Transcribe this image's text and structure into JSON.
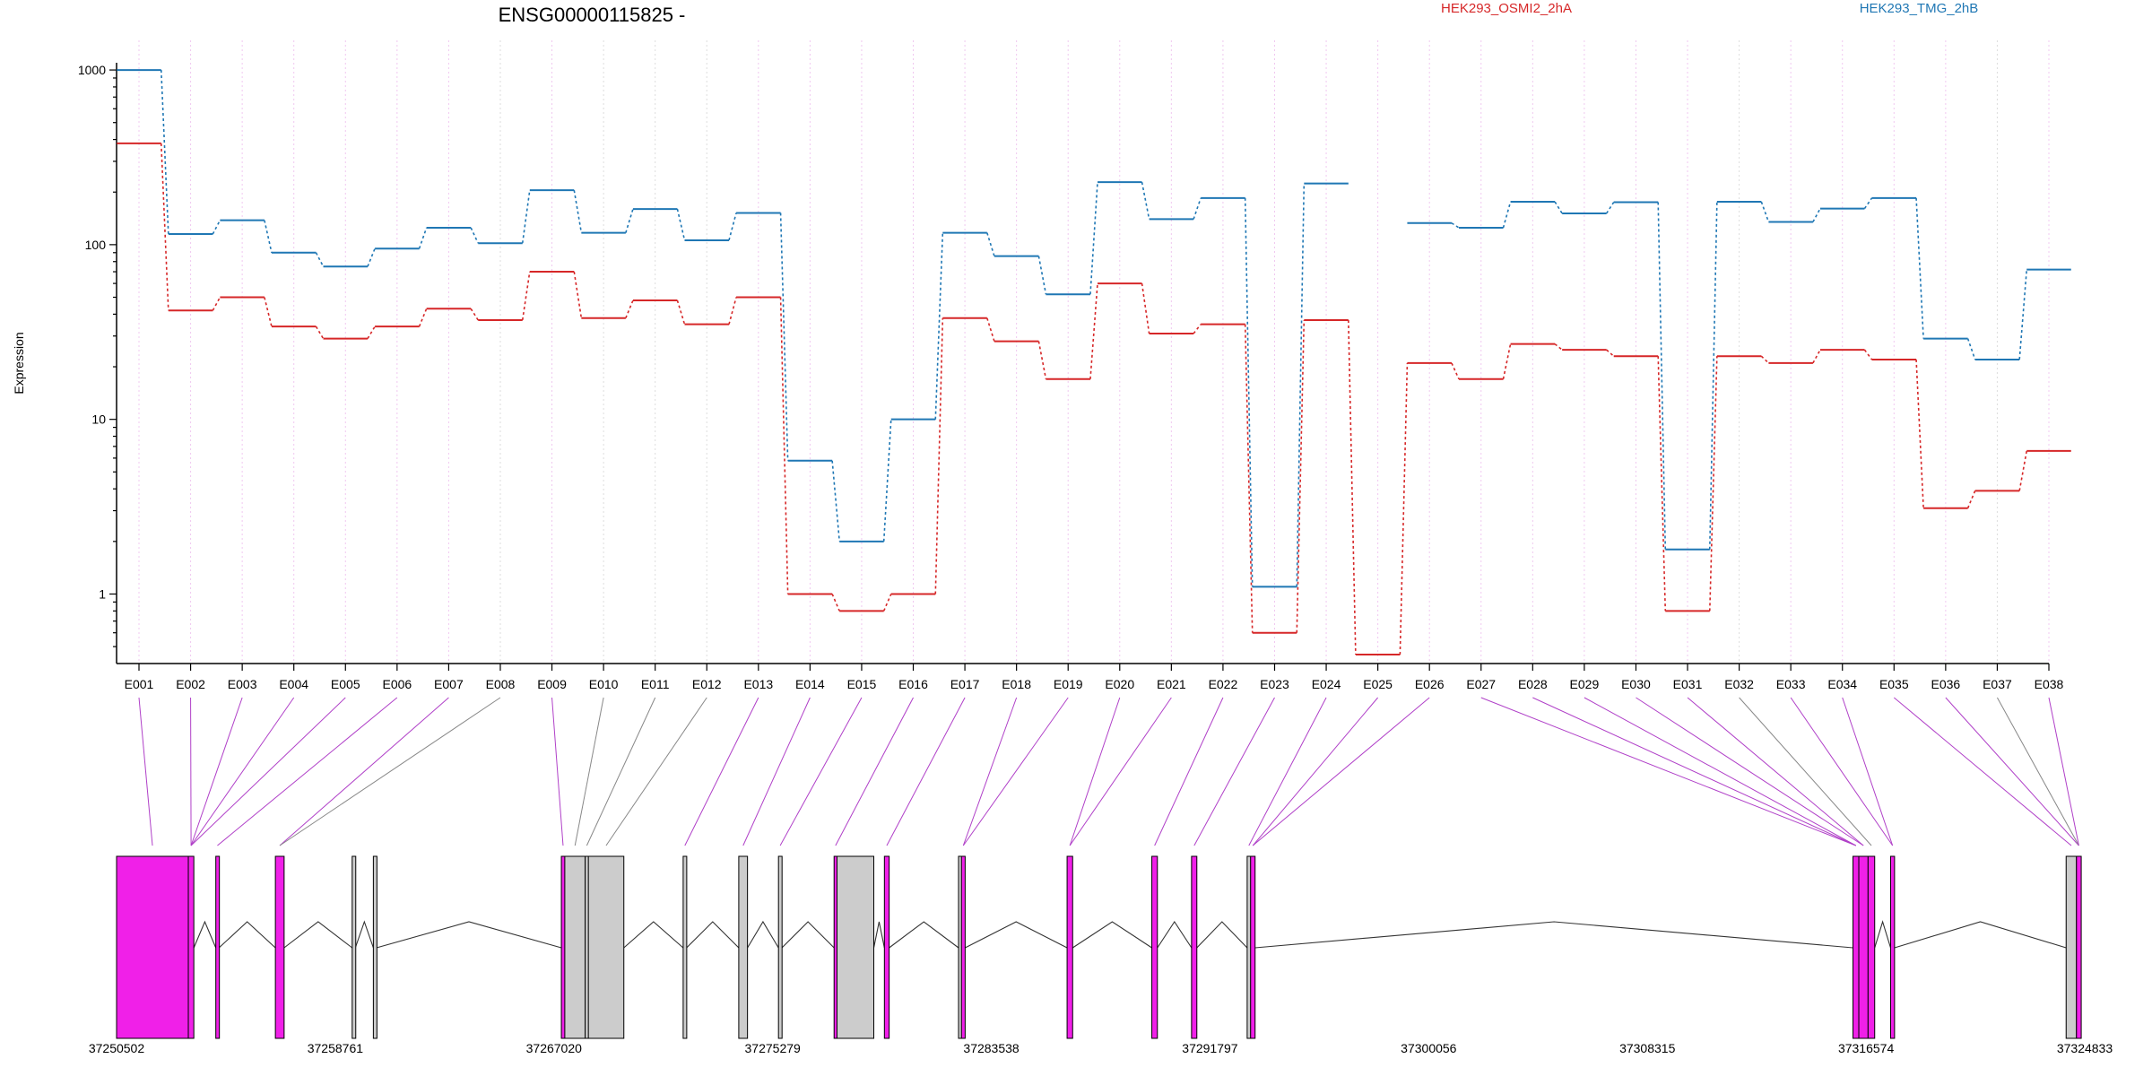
{
  "chart_data": {
    "type": "line",
    "title": "ENSG00000115825 -",
    "xlabel": "",
    "ylabel": "Expression",
    "y_scale": "log",
    "y_ticks": [
      "1",
      "10",
      "100",
      "1000"
    ],
    "y_tick_values": [
      1,
      10,
      100,
      1000
    ],
    "ylim": [
      0.4,
      1100
    ],
    "grid": true,
    "legend_position": "top-right",
    "categories": [
      "E001",
      "E002",
      "E003",
      "E004",
      "E005",
      "E006",
      "E007",
      "E008",
      "E009",
      "E010",
      "E011",
      "E012",
      "E013",
      "E014",
      "E015",
      "E016",
      "E017",
      "E018",
      "E019",
      "E020",
      "E021",
      "E022",
      "E023",
      "E024",
      "E025",
      "E026",
      "E027",
      "E028",
      "E029",
      "E030",
      "E031",
      "E032",
      "E033",
      "E034",
      "E035",
      "E036",
      "E037",
      "E038"
    ],
    "series": [
      {
        "name": "HEK293_OSMI2_2hA",
        "color": "#d62728",
        "values": [
          380,
          42,
          50,
          34,
          29,
          34,
          43,
          37,
          70,
          38,
          48,
          35,
          50,
          1.0,
          0.8,
          1.0,
          38,
          28,
          17,
          60,
          31,
          35,
          0.6,
          37,
          0.45,
          21,
          17,
          27,
          25,
          23,
          0.8,
          23,
          21,
          25,
          22,
          3.1,
          3.9,
          6.6
        ]
      },
      {
        "name": "HEK293_TMG_2hB",
        "color": "#1f77b4",
        "values": [
          1000,
          115,
          138,
          90,
          75,
          95,
          125,
          102,
          205,
          117,
          160,
          106,
          152,
          5.8,
          2.0,
          10,
          117,
          86,
          52,
          228,
          140,
          185,
          1.1,
          224,
          null,
          133,
          125,
          176,
          151,
          175,
          1.8,
          176,
          135,
          161,
          185,
          29,
          22,
          72
        ]
      }
    ],
    "exon_highlight": [
      true,
      true,
      true,
      true,
      true,
      true,
      true,
      false,
      true,
      false,
      false,
      false,
      true,
      true,
      true,
      true,
      true,
      true,
      true,
      true,
      true,
      true,
      true,
      true,
      true,
      true,
      true,
      true,
      true,
      true,
      true,
      false,
      true,
      true,
      true,
      true,
      false,
      true
    ],
    "genomic_axis": {
      "ticks": [
        "37250502",
        "37258761",
        "37267020",
        "37275279",
        "37283538",
        "37291797",
        "37300056",
        "37308315",
        "37316574",
        "37324833"
      ],
      "start": 37250502,
      "end": 37324833
    },
    "gene_model_exons": [
      {
        "start": 37250502,
        "end": 37253212,
        "highlight": true
      },
      {
        "start": 37253212,
        "end": 37253420,
        "highlight": true
      },
      {
        "start": 37254250,
        "end": 37254370,
        "highlight": true
      },
      {
        "start": 37256500,
        "end": 37256830,
        "highlight": true
      },
      {
        "start": 37259400,
        "end": 37259520,
        "highlight": false
      },
      {
        "start": 37260200,
        "end": 37260320,
        "highlight": false
      },
      {
        "start": 37267300,
        "end": 37267430,
        "highlight": true
      },
      {
        "start": 37267430,
        "end": 37268200,
        "highlight": false
      },
      {
        "start": 37268200,
        "end": 37268320,
        "highlight": false
      },
      {
        "start": 37268320,
        "end": 37269660,
        "highlight": false
      },
      {
        "start": 37271900,
        "end": 37272030,
        "highlight": false
      },
      {
        "start": 37274000,
        "end": 37274330,
        "highlight": false
      },
      {
        "start": 37275500,
        "end": 37275630,
        "highlight": false
      },
      {
        "start": 37277600,
        "end": 37277710,
        "highlight": true
      },
      {
        "start": 37277710,
        "end": 37279100,
        "highlight": false
      },
      {
        "start": 37279500,
        "end": 37279680,
        "highlight": true
      },
      {
        "start": 37282300,
        "end": 37282410,
        "highlight": false
      },
      {
        "start": 37282410,
        "end": 37282550,
        "highlight": true
      },
      {
        "start": 37286400,
        "end": 37286610,
        "highlight": true
      },
      {
        "start": 37289600,
        "end": 37289810,
        "highlight": true
      },
      {
        "start": 37291100,
        "end": 37291300,
        "highlight": true
      },
      {
        "start": 37293200,
        "end": 37293330,
        "highlight": false
      },
      {
        "start": 37293330,
        "end": 37293500,
        "highlight": true
      },
      {
        "start": 37316080,
        "end": 37316300,
        "highlight": true
      },
      {
        "start": 37316300,
        "end": 37316650,
        "highlight": true
      },
      {
        "start": 37316650,
        "end": 37316900,
        "highlight": true
      },
      {
        "start": 37317500,
        "end": 37317650,
        "highlight": true
      },
      {
        "start": 37324130,
        "end": 37324520,
        "highlight": false
      },
      {
        "start": 37324520,
        "end": 37324700,
        "highlight": true
      }
    ],
    "exon_to_model": [
      0,
      1,
      1,
      1,
      1,
      2,
      3,
      3,
      6,
      7,
      8,
      9,
      10,
      11,
      12,
      13,
      15,
      17,
      17,
      18,
      18,
      19,
      20,
      21,
      22,
      22,
      23,
      23,
      23,
      24,
      24,
      25,
      26,
      26,
      27,
      28,
      28,
      28
    ],
    "colors": {
      "highlight_exon": "#f020e8",
      "plain_exon": "#cccccc",
      "highlight_link": "#b040c8",
      "plain_link": "#888888"
    }
  }
}
